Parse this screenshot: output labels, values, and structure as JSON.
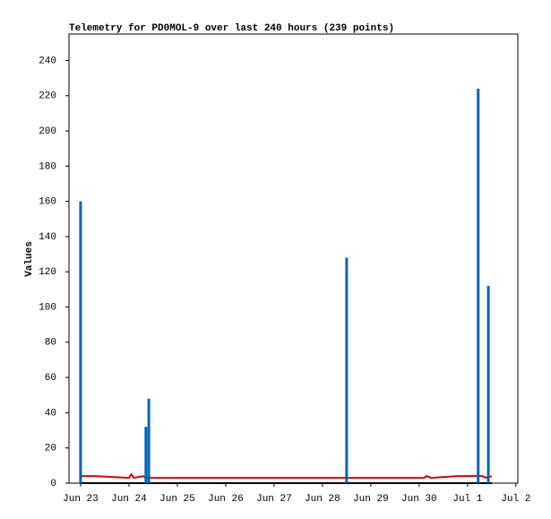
{
  "chart_data": {
    "type": "line",
    "title": "Telemetry for PD0MOL-9 over last 240 hours (239 points)",
    "y_label": "Values",
    "xlim": [
      -0.24,
      9.04
    ],
    "xticks": [
      {
        "value": 0,
        "label": "Jun 23"
      },
      {
        "value": 1,
        "label": "Jun 24"
      },
      {
        "value": 2,
        "label": "Jun 25"
      },
      {
        "value": 3,
        "label": "Jun 26"
      },
      {
        "value": 4,
        "label": "Jun 27"
      },
      {
        "value": 5,
        "label": "Jun 28"
      },
      {
        "value": 6,
        "label": "Jun 29"
      },
      {
        "value": 7,
        "label": "Jun 30"
      },
      {
        "value": 8,
        "label": "Jul 1"
      },
      {
        "value": 9,
        "label": "Jul 2"
      }
    ],
    "ylim": [
      0,
      255
    ],
    "yticks": [
      0,
      20,
      40,
      60,
      80,
      100,
      120,
      140,
      160,
      180,
      200,
      220,
      240
    ],
    "series": [
      {
        "color": "#000000",
        "style": "line",
        "x": [
          0,
          8.5
        ],
        "values": [
          0,
          0
        ]
      },
      {
        "color": "#e00000",
        "style": "line",
        "x": [
          0,
          0.3,
          1.0,
          1.05,
          1.1,
          1.3,
          1.35,
          1.45,
          7.1,
          7.15,
          7.25,
          7.8,
          8.3,
          8.4,
          8.5
        ],
        "values": [
          4,
          4,
          3,
          5,
          3,
          4,
          3,
          3,
          3,
          4,
          3,
          4,
          4,
          3,
          4
        ]
      },
      {
        "color": "#0066b3",
        "style": "impulse",
        "x": [
          0,
          1.35,
          1.41,
          5.5,
          8.22,
          8.43
        ],
        "values": [
          160,
          32,
          48,
          128,
          224,
          112
        ]
      }
    ]
  }
}
